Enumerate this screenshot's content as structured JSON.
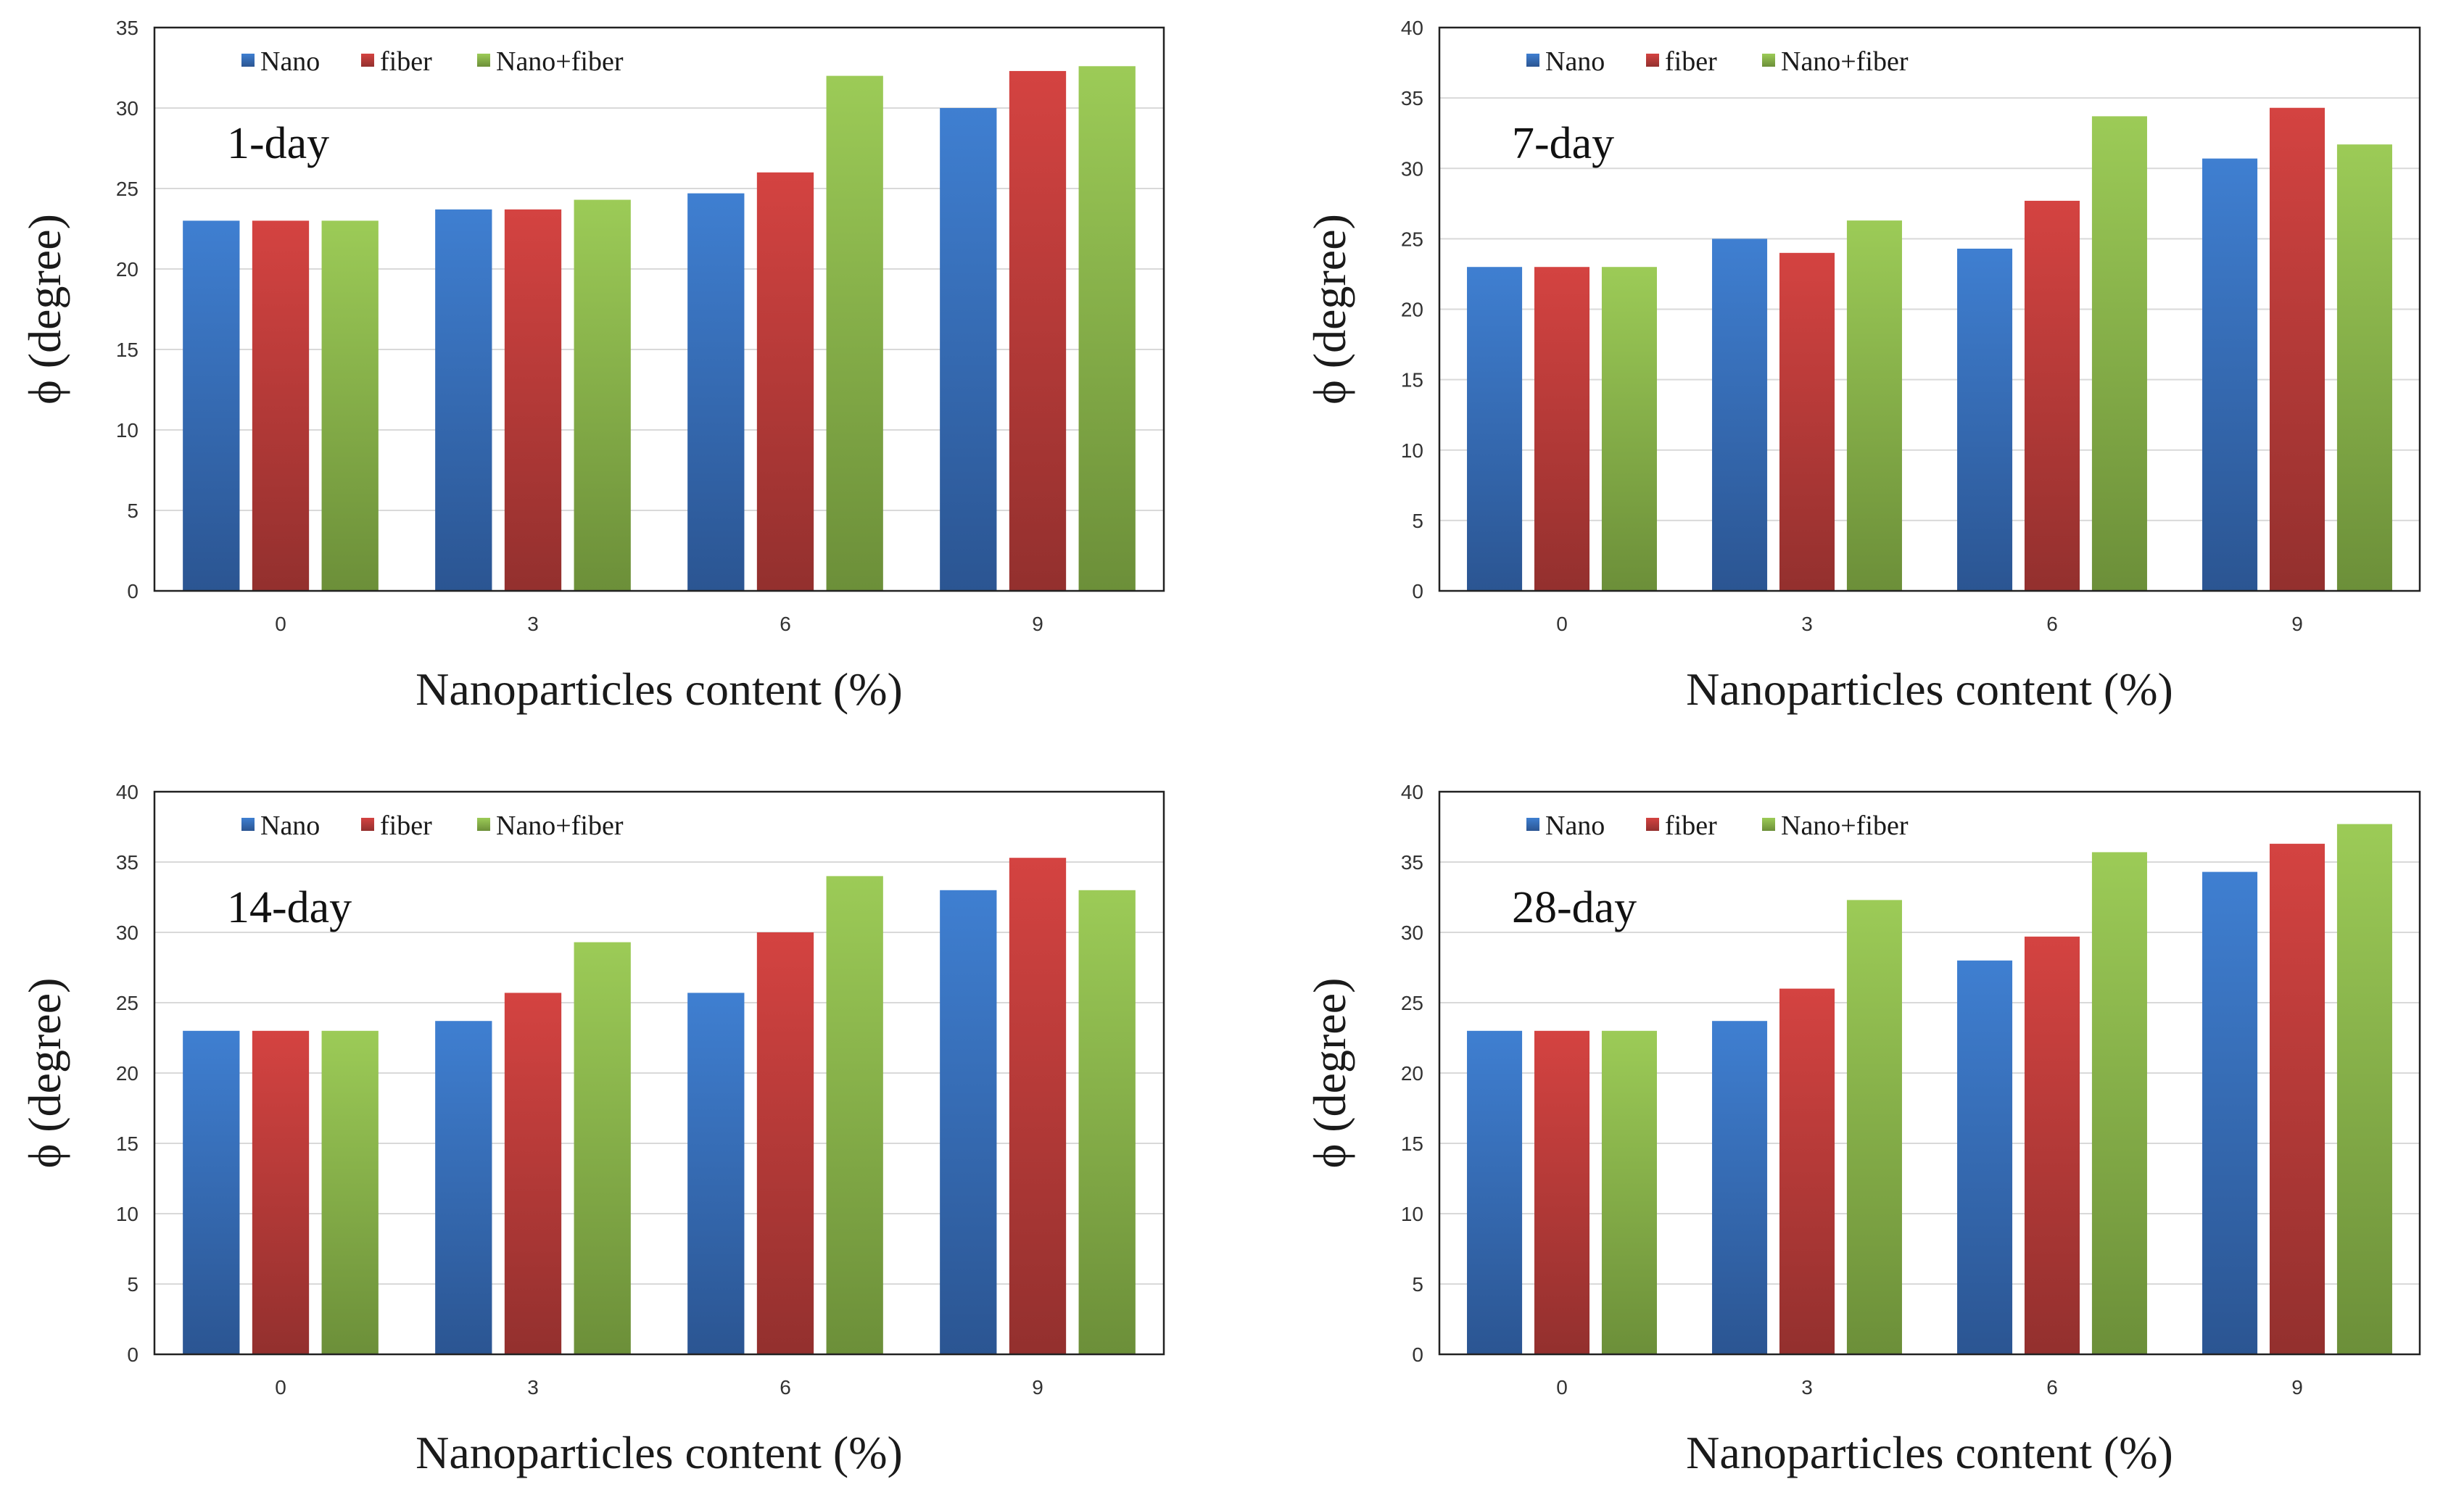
{
  "colors": {
    "nano": "#3a71bd",
    "fiber": "#c13c3a",
    "nano_fiber": "#8ab54b",
    "grid": "#d9d9d9",
    "frame": "#222222"
  },
  "chart_data": [
    {
      "type": "bar",
      "title": "1-day",
      "xlabel": "Nanoparticles content (%)",
      "ylabel": "ϕ (degree)",
      "categories": [
        "0",
        "3",
        "6",
        "9"
      ],
      "ylim": [
        0,
        35
      ],
      "yticks": [
        "0",
        "5",
        "10",
        "15",
        "20",
        "25",
        "30",
        "35"
      ],
      "legend_position": "top-left",
      "series": [
        {
          "name": "Nano",
          "values": [
            23,
            23.7,
            24.7,
            30
          ]
        },
        {
          "name": "fiber",
          "values": [
            23,
            23.7,
            26,
            32.3
          ]
        },
        {
          "name": "Nano+fiber",
          "values": [
            23,
            24.3,
            32,
            32.6
          ]
        }
      ]
    },
    {
      "type": "bar",
      "title": "7-day",
      "xlabel": "Nanoparticles content (%)",
      "ylabel": "ϕ (degree)",
      "categories": [
        "0",
        "3",
        "6",
        "9"
      ],
      "ylim": [
        0,
        40
      ],
      "yticks": [
        "0",
        "5",
        "10",
        "15",
        "20",
        "25",
        "30",
        "35",
        "40"
      ],
      "legend_position": "top-left",
      "series": [
        {
          "name": "Nano",
          "values": [
            23,
            25,
            24.3,
            30.7
          ]
        },
        {
          "name": "fiber",
          "values": [
            23,
            24,
            27.7,
            34.3
          ]
        },
        {
          "name": "Nano+fiber",
          "values": [
            23,
            26.3,
            33.7,
            31.7
          ]
        }
      ]
    },
    {
      "type": "bar",
      "title": "14-day",
      "xlabel": "Nanoparticles content (%)",
      "ylabel": "ϕ (degree)",
      "categories": [
        "0",
        "3",
        "6",
        "9"
      ],
      "ylim": [
        0,
        40
      ],
      "yticks": [
        "0",
        "5",
        "10",
        "15",
        "20",
        "25",
        "30",
        "35",
        "40"
      ],
      "legend_position": "top-left",
      "series": [
        {
          "name": "Nano",
          "values": [
            23,
            23.7,
            25.7,
            33
          ]
        },
        {
          "name": "fiber",
          "values": [
            23,
            25.7,
            30,
            35.3
          ]
        },
        {
          "name": "Nano+fiber",
          "values": [
            23,
            29.3,
            34,
            33
          ]
        }
      ]
    },
    {
      "type": "bar",
      "title": "28-day",
      "xlabel": "Nanoparticles content (%)",
      "ylabel": "ϕ (degree)",
      "categories": [
        "0",
        "3",
        "6",
        "9"
      ],
      "ylim": [
        0,
        40
      ],
      "yticks": [
        "0",
        "5",
        "10",
        "15",
        "20",
        "25",
        "30",
        "35",
        "40"
      ],
      "legend_position": "top-left",
      "series": [
        {
          "name": "Nano",
          "values": [
            23,
            23.7,
            28,
            34.3
          ]
        },
        {
          "name": "fiber",
          "values": [
            23,
            26,
            29.7,
            36.3
          ]
        },
        {
          "name": "Nano+fiber",
          "values": [
            23,
            32.3,
            35.7,
            37.7
          ]
        }
      ]
    }
  ]
}
